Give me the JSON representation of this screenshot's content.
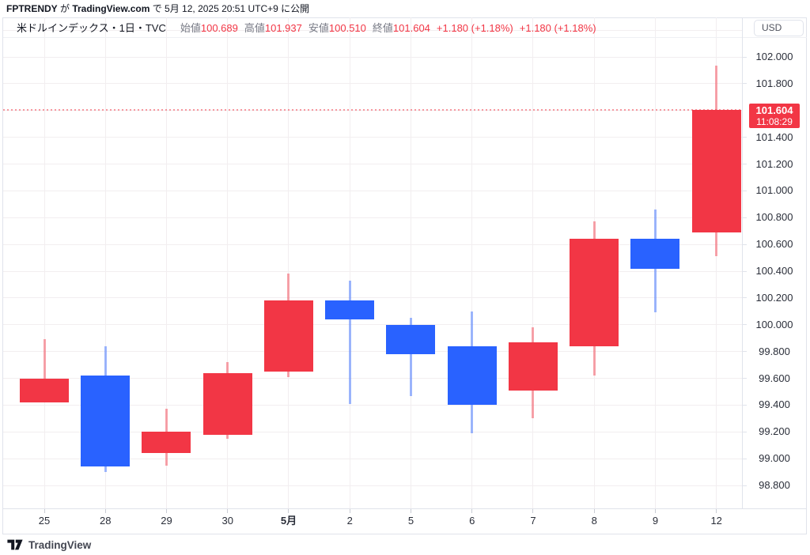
{
  "attribution": {
    "author": "FPTRENDY",
    "sep1": " が ",
    "site": "TradingView.com",
    "sep2": " で ",
    "datetime": "5月 12, 2025 20:51 UTC+9",
    "sep3": " に公開"
  },
  "legend": {
    "symbol": "米ドルインデックス・1日・TVC",
    "fields": [
      {
        "label": "始値",
        "value": "100.689"
      },
      {
        "label": "高値",
        "value": "101.937"
      },
      {
        "label": "安値",
        "value": "100.510"
      },
      {
        "label": "終値",
        "value": "101.604"
      }
    ],
    "changes": [
      "+1.180 (+1.18%)",
      "+1.180 (+1.18%)"
    ]
  },
  "price_axis": {
    "currency": "USD",
    "labels": [
      "102.000",
      "101.800",
      "101.400",
      "101.200",
      "101.000",
      "100.800",
      "100.600",
      "100.400",
      "100.200",
      "100.000",
      "99.800",
      "99.600",
      "99.400",
      "99.200",
      "99.000",
      "98.800"
    ],
    "last": {
      "price": "101.604",
      "countdown": "11:08:29"
    }
  },
  "footer": {
    "brand": "TradingView"
  },
  "colors": {
    "up": "#f23645",
    "down": "#2962ff",
    "up_wick": "rgba(242,54,69,0.45)",
    "down_wick": "rgba(41,98,255,0.45)",
    "grid": "#f2eef0",
    "border": "#e0e3eb",
    "badge_bg": "#f23645",
    "price_line": "rgba(242,54,69,0.5)"
  },
  "chart_data": {
    "type": "candlestick",
    "title": "米ドルインデックス・1日・TVC",
    "interval": "1日",
    "exchange": "TVC",
    "open": 100.689,
    "high": 101.937,
    "low": 100.51,
    "close": 101.604,
    "change": "+1.180 (+1.18%)",
    "price_line_value": 101.604,
    "countdown": "11:08:29",
    "ylim": [
      98.7,
      102.25
    ],
    "grid_step": 0.2,
    "up_color_meaning": "陽線(上昇)=赤",
    "down_color_meaning": "陰線(下落)=青",
    "candles": [
      {
        "date": "25",
        "open": 99.42,
        "high": 99.89,
        "low": 99.42,
        "close": 99.6
      },
      {
        "date": "28",
        "open": 99.62,
        "high": 99.84,
        "low": 98.9,
        "close": 98.94
      },
      {
        "date": "29",
        "open": 99.04,
        "high": 99.37,
        "low": 98.95,
        "close": 99.2
      },
      {
        "date": "30",
        "open": 99.18,
        "high": 99.72,
        "low": 99.15,
        "close": 99.64
      },
      {
        "date": "5月",
        "open": 99.65,
        "high": 100.38,
        "low": 99.61,
        "close": 100.18,
        "major": true
      },
      {
        "date": "2",
        "open": 100.18,
        "high": 100.33,
        "low": 99.41,
        "close": 100.04
      },
      {
        "date": "5",
        "open": 100.0,
        "high": 100.05,
        "low": 99.47,
        "close": 99.78
      },
      {
        "date": "6",
        "open": 99.84,
        "high": 100.1,
        "low": 99.19,
        "close": 99.4
      },
      {
        "date": "7",
        "open": 99.51,
        "high": 99.98,
        "low": 99.3,
        "close": 99.87
      },
      {
        "date": "8",
        "open": 99.84,
        "high": 100.77,
        "low": 99.62,
        "close": 100.64
      },
      {
        "date": "9",
        "open": 100.64,
        "high": 100.86,
        "low": 100.09,
        "close": 100.42
      },
      {
        "date": "12",
        "open": 100.689,
        "high": 101.937,
        "low": 100.51,
        "close": 101.604
      }
    ]
  }
}
